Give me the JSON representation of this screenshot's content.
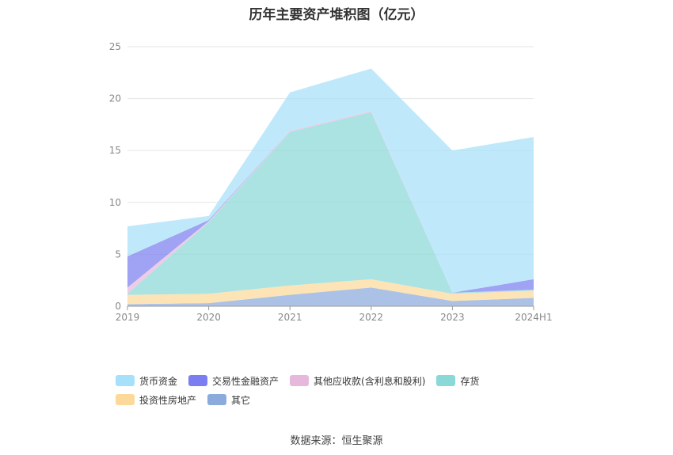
{
  "title": "历年主要资产堆积图（亿元）",
  "source": "数据来源：恒生聚源",
  "chart_data": {
    "type": "area",
    "stacked": true,
    "title": "历年主要资产堆积图（亿元）",
    "categories": [
      "2019",
      "2020",
      "2021",
      "2022",
      "2023",
      "2024H1"
    ],
    "ylim": [
      0,
      25
    ],
    "yticks": [
      "0",
      "5",
      "10",
      "15",
      "20",
      "25"
    ],
    "grid": true,
    "legend_position": "bottom",
    "series": [
      {
        "name": "其它",
        "color": "#8aabdc",
        "values": [
          0.2,
          0.3,
          1.1,
          1.8,
          0.5,
          0.8
        ]
      },
      {
        "name": "投资性房地产",
        "color": "#fcd99a",
        "values": [
          0.9,
          0.9,
          0.9,
          0.8,
          0.7,
          0.7
        ]
      },
      {
        "name": "存货",
        "color": "#8ad8d8",
        "values": [
          0.1,
          6.9,
          14.8,
          16.1,
          0.1,
          0.1
        ]
      },
      {
        "name": "其他应收款(含利息和股利)",
        "color": "#e6b8dc",
        "values": [
          0.6,
          0.1,
          0.1,
          0.1,
          0.0,
          0.0
        ]
      },
      {
        "name": "交易性金融资产",
        "color": "#7b7ef0",
        "values": [
          3.0,
          0.1,
          0.0,
          0.0,
          0.0,
          1.0
        ]
      },
      {
        "name": "货币资金",
        "color": "#a6e0fa",
        "values": [
          2.9,
          0.4,
          3.7,
          4.1,
          13.7,
          13.7
        ]
      }
    ]
  }
}
